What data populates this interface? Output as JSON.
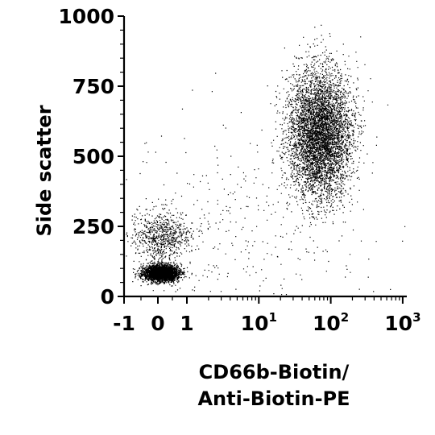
{
  "chart_data": {
    "type": "scatter",
    "title": "",
    "xlabel_lines": [
      "CD66b-Biotin/",
      "Anti-Biotin-PE"
    ],
    "ylabel": "Side scatter",
    "x_scale": "biexponential",
    "xlim": [
      -1,
      1000
    ],
    "ylim": [
      0,
      1000
    ],
    "grid": false,
    "legend": "none",
    "x_ticks": [
      {
        "value": -1,
        "base": "-1",
        "exp": ""
      },
      {
        "value": 0,
        "base": "0",
        "exp": ""
      },
      {
        "value": 1,
        "base": "1",
        "exp": ""
      },
      {
        "value": 10,
        "base": "10",
        "exp": "1"
      },
      {
        "value": 100,
        "base": "10",
        "exp": "2"
      },
      {
        "value": 1000,
        "base": "10",
        "exp": "3"
      }
    ],
    "y_ticks": [
      {
        "value": 0,
        "label": "0"
      },
      {
        "value": 250,
        "label": "250"
      },
      {
        "value": 500,
        "label": "500"
      },
      {
        "value": 750,
        "label": "750"
      },
      {
        "value": 1000,
        "label": "1000"
      }
    ],
    "point_color": "#000000",
    "populations": [
      {
        "center": [
          0.1,
          85
        ],
        "count": 3200,
        "spread_decades": 0.17,
        "spread_y": 14
      },
      {
        "center": [
          0.1,
          215
        ],
        "count": 750,
        "spread_decades": 0.2,
        "spread_y": 45
      },
      {
        "center": [
          70,
          580
        ],
        "count": 8500,
        "spread_decades": 0.22,
        "spread_y": 115
      },
      {
        "center": [
          5,
          250
        ],
        "count": 350,
        "spread_decades": 0.9,
        "spread_y": 200
      }
    ]
  }
}
